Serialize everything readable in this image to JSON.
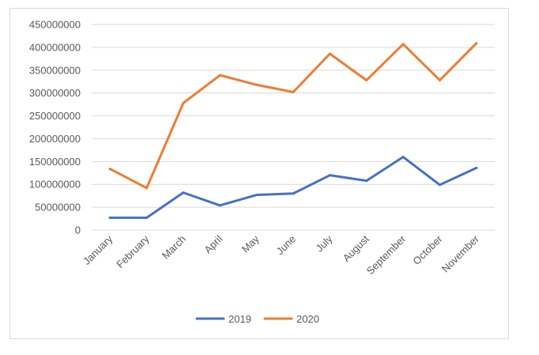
{
  "chart_data": {
    "type": "line",
    "title": "",
    "xlabel": "",
    "ylabel": "",
    "categories": [
      "January",
      "February",
      "March",
      "April",
      "May",
      "June",
      "July",
      "August",
      "September",
      "October",
      "November"
    ],
    "ylim": [
      0,
      450000000
    ],
    "yticks": [
      0,
      50000000,
      100000000,
      150000000,
      200000000,
      250000000,
      300000000,
      350000000,
      400000000,
      450000000
    ],
    "ytick_labels": [
      "0",
      "50000000",
      "100000000",
      "150000000",
      "200000000",
      "250000000",
      "300000000",
      "350000000",
      "400000000",
      "450000000"
    ],
    "grid": true,
    "legend_position": "bottom",
    "series": [
      {
        "name": "2019",
        "color": "#4472c4",
        "values": [
          27000000,
          27000000,
          82000000,
          54000000,
          77000000,
          80000000,
          120000000,
          108000000,
          160000000,
          99000000,
          136000000
        ]
      },
      {
        "name": "2020",
        "color": "#ed7d31",
        "values": [
          134000000,
          92000000,
          278000000,
          339000000,
          318000000,
          302000000,
          386000000,
          328000000,
          407000000,
          328000000,
          409000000
        ]
      }
    ]
  }
}
